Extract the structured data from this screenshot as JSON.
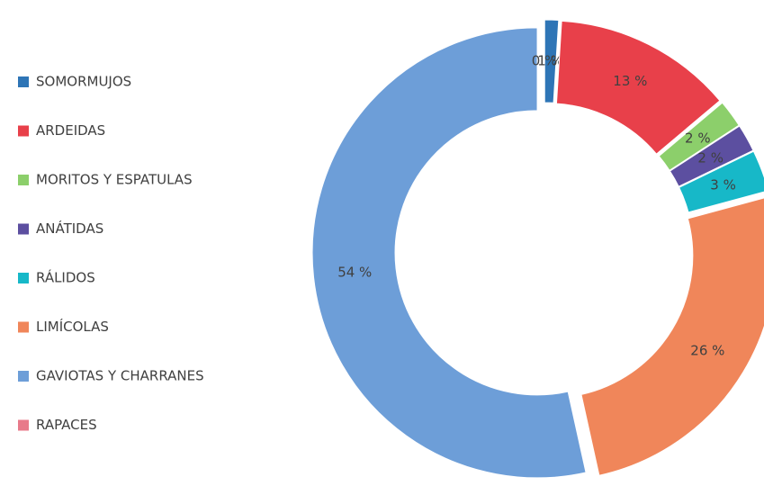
{
  "chart_data": {
    "type": "pie",
    "categories": [
      "SOMORMUJOS",
      "ARDEIDAS",
      "MORITOS Y ESPATULAS",
      "ANÁTIDAS",
      "RÁLIDOS",
      "LIMÍCOLAS",
      "GAVIOTAS Y CHARRANES",
      "RAPACES"
    ],
    "values": [
      1,
      13,
      2,
      2,
      3,
      26,
      54,
      0
    ],
    "value_labels": [
      "1 %",
      "13 %",
      "2 %",
      "2 %",
      "3 %",
      "26 %",
      "54 %",
      "0 %"
    ],
    "colors": [
      "#2e75b6",
      "#e8404a",
      "#8ccf6b",
      "#5c4fa0",
      "#17b8c8",
      "#f0865a",
      "#6d9ed8",
      "#e87a8a"
    ],
    "legend": "left"
  }
}
